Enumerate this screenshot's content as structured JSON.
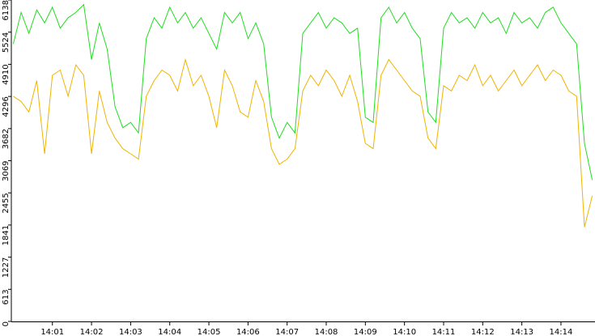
{
  "chart_data": {
    "type": "line",
    "x": [
      0,
      0.2,
      0.4,
      0.6,
      0.8,
      1,
      1.2,
      1.4,
      1.6,
      1.8,
      2,
      2.2,
      2.4,
      2.6,
      2.8,
      3,
      3.2,
      3.4,
      3.6,
      3.8,
      4,
      4.2,
      4.4,
      4.6,
      4.8,
      5,
      5.2,
      5.4,
      5.6,
      5.8,
      6,
      6.2,
      6.4,
      6.6,
      6.8,
      7,
      7.2,
      7.4,
      7.6,
      7.8,
      8,
      8.2,
      8.4,
      8.6,
      8.8,
      9,
      9.2,
      9.4,
      9.6,
      9.8,
      10,
      10.2,
      10.4,
      10.6,
      10.8,
      11,
      11.2,
      11.4,
      11.6,
      11.8,
      12,
      12.2,
      12.4,
      12.6,
      12.8,
      13,
      13.2,
      13.4,
      13.6,
      13.8,
      14,
      14.2,
      14.4,
      14.6,
      14.8
    ],
    "series": [
      {
        "color": "#22dd22",
        "values": [
          5300,
          5900,
          5500,
          5950,
          5700,
          6000,
          5600,
          5800,
          5900,
          6050,
          5000,
          5700,
          5200,
          4100,
          3700,
          3800,
          3600,
          5400,
          5800,
          5600,
          6000,
          5700,
          5900,
          5600,
          5800,
          5500,
          5200,
          5900,
          5700,
          5900,
          5400,
          5700,
          5300,
          3900,
          3500,
          3800,
          3600,
          5500,
          5700,
          5900,
          5600,
          5800,
          5700,
          5500,
          5600,
          3900,
          3800,
          5800,
          6000,
          5700,
          5900,
          5600,
          5400,
          4000,
          3800,
          5600,
          5900,
          5700,
          5800,
          5600,
          5900,
          5700,
          5800,
          5500,
          5900,
          5700,
          5800,
          5600,
          5900,
          6000,
          5700,
          5500,
          5300,
          3400,
          2700
        ]
      },
      {
        "color": "#f0b400",
        "values": [
          4300,
          4200,
          4000,
          4600,
          3200,
          4700,
          4800,
          4300,
          4900,
          4700,
          3200,
          4400,
          3800,
          3500,
          3300,
          3200,
          3100,
          4300,
          4600,
          4800,
          4700,
          4400,
          5000,
          4500,
          4700,
          4300,
          3700,
          4800,
          4500,
          4000,
          3900,
          4600,
          4200,
          3300,
          3000,
          3100,
          3300,
          4400,
          4700,
          4500,
          4800,
          4600,
          4300,
          4700,
          4200,
          3400,
          3300,
          4700,
          5000,
          4800,
          4600,
          4400,
          4300,
          3500,
          3300,
          4500,
          4400,
          4700,
          4600,
          4900,
          4500,
          4700,
          4400,
          4600,
          4800,
          4500,
          4700,
          4900,
          4600,
          4800,
          4700,
          4400,
          4300,
          1800,
          2400
        ]
      }
    ],
    "xlim": [
      -0.05,
      14.87
    ],
    "xticks": [
      {
        "value": 1,
        "label": "14:01"
      },
      {
        "value": 2,
        "label": "14:02"
      },
      {
        "value": 3,
        "label": "14:03"
      },
      {
        "value": 4,
        "label": "14:04"
      },
      {
        "value": 5,
        "label": "14:05"
      },
      {
        "value": 6,
        "label": "14:06"
      },
      {
        "value": 7,
        "label": "14:07"
      },
      {
        "value": 8,
        "label": "14:08"
      },
      {
        "value": 9,
        "label": "14:09"
      },
      {
        "value": 10,
        "label": "14:10"
      },
      {
        "value": 11,
        "label": "14:11"
      },
      {
        "value": 12,
        "label": "14:12"
      },
      {
        "value": 13,
        "label": "14:13"
      },
      {
        "value": 14,
        "label": "14:14"
      }
    ],
    "ylim": [
      0,
      6138
    ],
    "yticks": [
      0,
      613,
      1227,
      1841,
      2455,
      3069,
      3682,
      4296,
      4910,
      5524,
      6138
    ]
  }
}
